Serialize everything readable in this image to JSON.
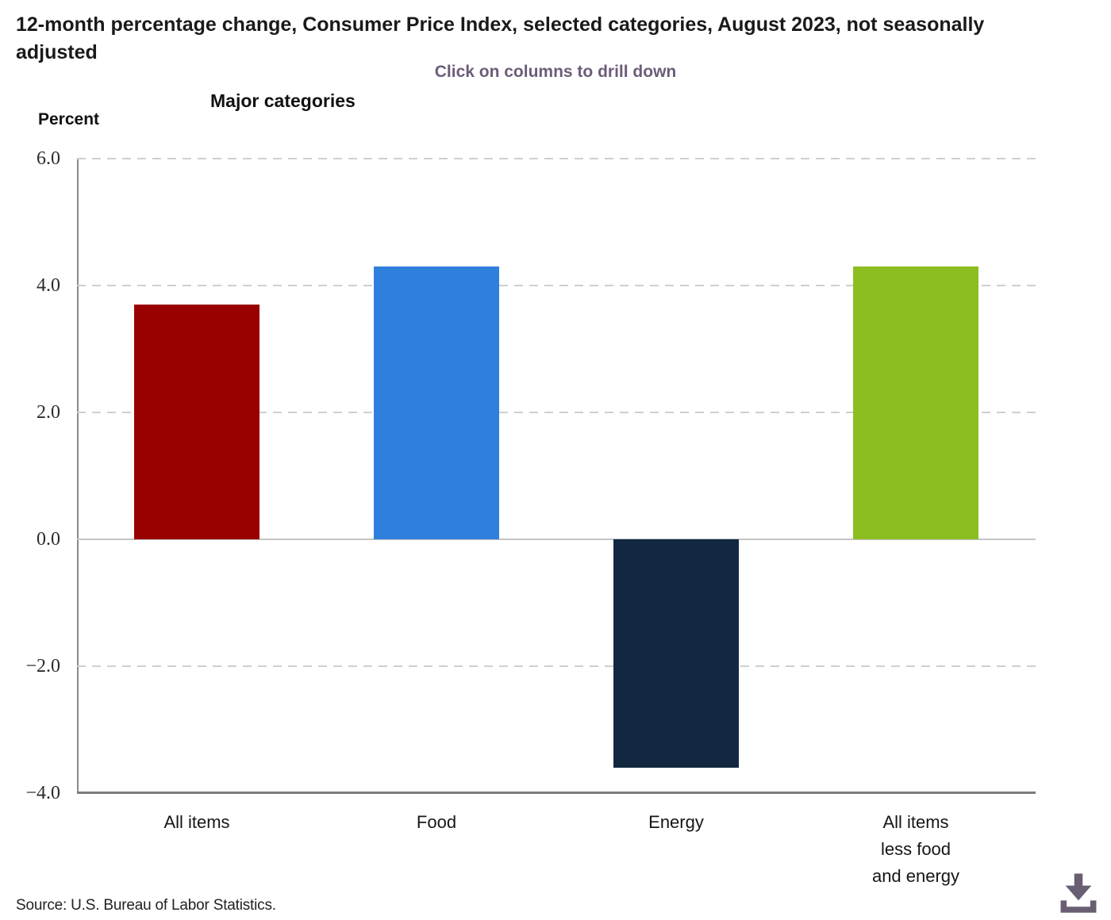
{
  "header": {
    "title": "12-month percentage change, Consumer Price Index, selected categories, August 2023, not seasonally adjusted",
    "subtitle": "Click on columns to drill down"
  },
  "chart_data": {
    "type": "bar",
    "title": "12-month percentage change, Consumer Price Index, selected categories, August 2023, not seasonally adjusted",
    "group_label": "Major categories",
    "ylabel": "Percent",
    "xlabel": "",
    "categories": [
      "All items",
      "Food",
      "Energy",
      "All items less food and energy"
    ],
    "category_label_lines": [
      [
        "All items"
      ],
      [
        "Food"
      ],
      [
        "Energy"
      ],
      [
        "All items",
        "less food",
        "and energy"
      ]
    ],
    "values": [
      3.7,
      4.3,
      -3.6,
      4.3
    ],
    "bar_colors": [
      "#990000",
      "#2F80DC",
      "#112840",
      "#8CBE22"
    ],
    "ylim": [
      -4.0,
      6.0
    ],
    "ytick_interval": 2.0,
    "yticks": [
      6.0,
      4.0,
      2.0,
      0.0,
      -2.0,
      -4.0
    ],
    "ytick_labels": [
      "6.0",
      "4.0",
      "2.0",
      "0.0",
      "−2.0",
      "−4.0"
    ],
    "grid": "horizontal dashed gridlines, solid zero line, solid bottom axis",
    "legend": "none",
    "annotation": "Click on columns to drill down"
  },
  "footer": {
    "source": "Source: U.S. Bureau of Labor Statistics."
  },
  "icons": {
    "download": "download-icon"
  },
  "colors": {
    "bar_all_items": "#990000",
    "bar_food": "#2F80DC",
    "bar_energy": "#112840",
    "bar_all_items_less_food_and_energy": "#8CBE22",
    "subtitle_text": "#6C5C78",
    "download_icon": "#6A5E72",
    "axis_line": "#7C7C7C",
    "gridline": "#CFCFCF"
  }
}
